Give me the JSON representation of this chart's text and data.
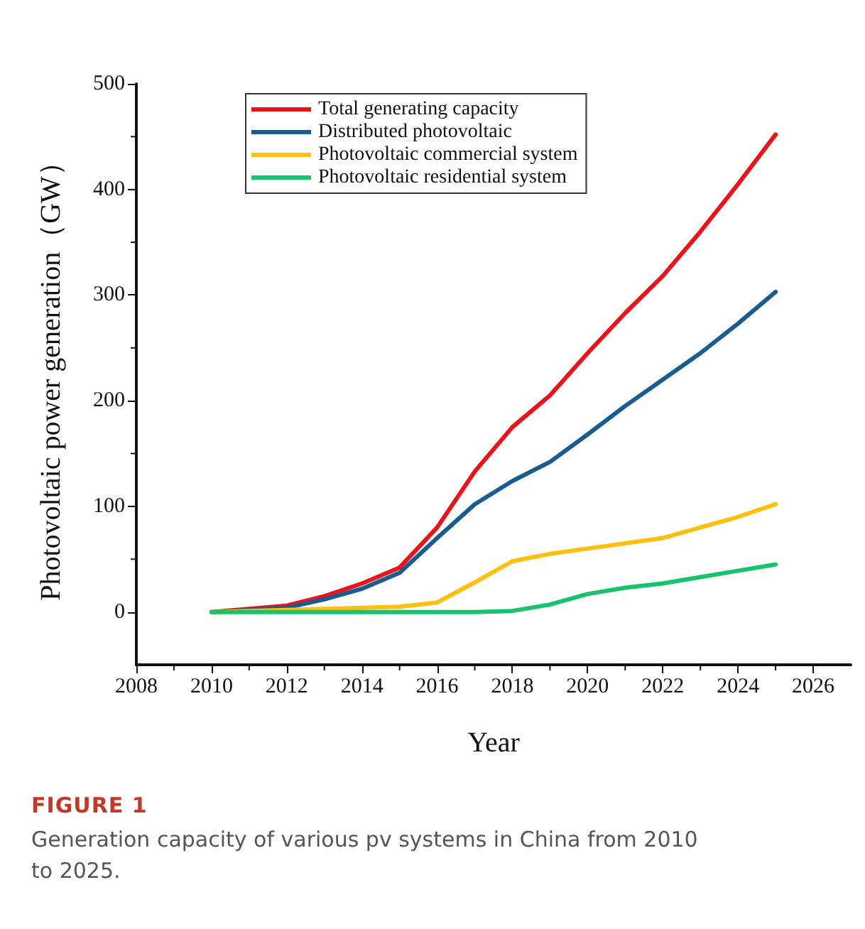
{
  "chart_data": {
    "type": "line",
    "xlabel": "Year",
    "ylabel": "Photovoltaic power generation（GW）",
    "x": [
      2010,
      2011,
      2012,
      2013,
      2014,
      2015,
      2016,
      2017,
      2018,
      2019,
      2020,
      2021,
      2022,
      2023,
      2024,
      2025
    ],
    "series": [
      {
        "name": "Total generating capacity",
        "color": "#e8131b",
        "values": [
          0,
          3,
          6,
          15,
          27,
          42,
          80,
          133,
          175,
          205,
          245,
          283,
          318,
          360,
          405,
          452
        ]
      },
      {
        "name": "Distributed photovoltaic",
        "color": "#1b5c8f",
        "values": [
          0,
          2,
          4,
          12,
          22,
          37,
          70,
          102,
          124,
          142,
          168,
          195,
          220,
          245,
          273,
          303
        ]
      },
      {
        "name": "Photovoltaic commercial system",
        "color": "#fdc010",
        "values": [
          0,
          1,
          2,
          3,
          4,
          5,
          9,
          28,
          48,
          55,
          60,
          65,
          70,
          80,
          90,
          102
        ]
      },
      {
        "name": "Photovoltaic residential system",
        "color": "#19c36b",
        "values": [
          0,
          0,
          0,
          0,
          0,
          0,
          0,
          0,
          1,
          7,
          17,
          23,
          27,
          33,
          39,
          45
        ]
      }
    ],
    "xlim": [
      2008,
      2027
    ],
    "xticks": [
      2008,
      2010,
      2012,
      2014,
      2016,
      2018,
      2020,
      2022,
      2024,
      2026
    ],
    "ylim": [
      -50,
      500
    ],
    "yticks": [
      0,
      100,
      200,
      300,
      400,
      500
    ],
    "grid": false,
    "legend": "top",
    "marker": "none",
    "line_style": "solid",
    "annotations": [
      "FIGURE 1",
      "Generation capacity of various pv systems in China from 2010 to 2025."
    ]
  }
}
